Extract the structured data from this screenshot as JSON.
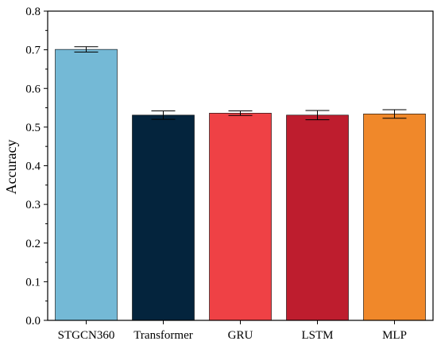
{
  "chart_data": {
    "type": "bar",
    "title": "",
    "xlabel": "",
    "ylabel": "Accuracy",
    "ylim": [
      0,
      0.8
    ],
    "yticks": [
      "0.0",
      "0.1",
      "0.2",
      "0.3",
      "0.4",
      "0.5",
      "0.6",
      "0.7",
      "0.8"
    ],
    "grid": false,
    "legend": "none",
    "categories": [
      "STGCN360",
      "Transformer",
      "GRU",
      "LSTM",
      "MLP"
    ],
    "values": [
      0.701,
      0.531,
      0.536,
      0.531,
      0.534
    ],
    "errors": [
      0.007,
      0.011,
      0.006,
      0.012,
      0.011
    ],
    "colors": [
      "#74b9d6",
      "#04243d",
      "#ef4145",
      "#be1d2e",
      "#f0882a"
    ]
  }
}
